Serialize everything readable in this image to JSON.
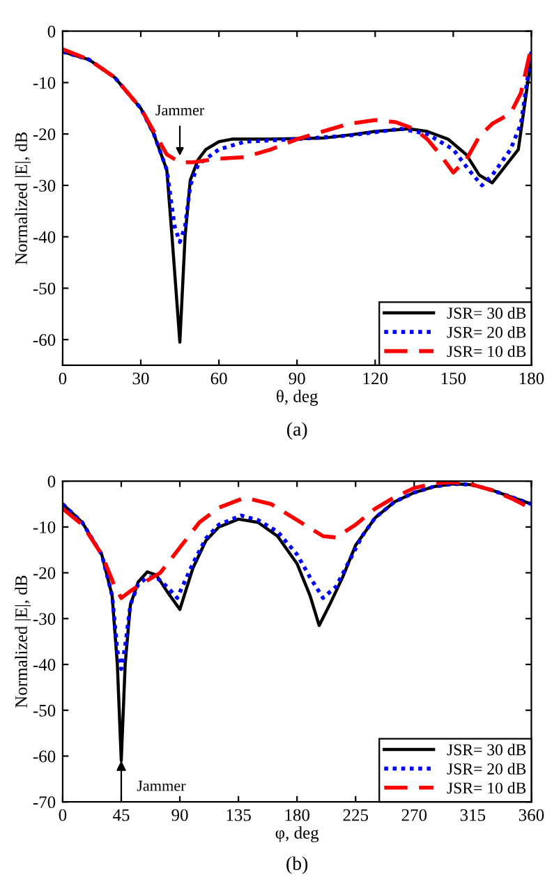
{
  "chart_data": [
    {
      "type": "line",
      "xlabel": "θ, deg",
      "ylabel": "Normalized |E|, dB",
      "xlim": [
        0,
        180
      ],
      "ylim": [
        -65,
        0
      ],
      "xticks": [
        0,
        30,
        60,
        90,
        120,
        150,
        180
      ],
      "yticks": [
        0,
        -10,
        -20,
        -30,
        -40,
        -50,
        -60
      ],
      "grid": false,
      "legend": "bottom right",
      "annotations": [
        {
          "text": "Jammer",
          "x": 45,
          "y": -25
        },
        "(a)"
      ],
      "series": [
        {
          "name": "JSR= 30 dB",
          "color": "#000000",
          "line_style": "solid",
          "x": [
            0,
            10,
            20,
            30,
            35,
            40,
            42,
            45,
            47,
            49,
            52,
            55,
            60,
            65,
            80,
            100,
            110,
            120,
            133,
            140,
            148,
            155,
            160,
            165,
            175,
            180
          ],
          "values": [
            -4,
            -5.5,
            -9,
            -15,
            -20,
            -27,
            -40,
            -60.5,
            -40,
            -29,
            -25,
            -23,
            -21.5,
            -21,
            -21,
            -20.8,
            -20.2,
            -19.5,
            -19,
            -19.5,
            -21,
            -24,
            -28,
            -29.5,
            -23,
            -5
          ]
        },
        {
          "name": "JSR= 20 dB",
          "color": "#0000ff",
          "line_style": "dotted",
          "x": [
            0,
            10,
            20,
            30,
            35,
            40,
            43,
            45,
            47,
            49,
            52,
            60,
            70,
            90,
            110,
            130,
            140,
            150,
            156,
            161,
            165,
            172,
            176,
            180
          ],
          "values": [
            -4,
            -5.5,
            -9,
            -15,
            -20,
            -27,
            -38,
            -41,
            -38,
            -30,
            -26,
            -23,
            -21.5,
            -21,
            -20.3,
            -19,
            -20,
            -23,
            -27,
            -30,
            -28,
            -23,
            -18,
            -4
          ]
        },
        {
          "name": "JSR= 10 dB",
          "color": "#ff0000",
          "line_style": "dashed",
          "x": [
            0,
            10,
            20,
            30,
            35,
            40,
            45,
            50,
            60,
            70,
            80,
            90,
            100,
            110,
            120,
            128,
            135,
            140,
            145,
            150,
            155,
            160,
            165,
            172,
            176,
            180
          ],
          "values": [
            -3.5,
            -5.5,
            -9,
            -15,
            -19.5,
            -24,
            -25.5,
            -25.5,
            -24.8,
            -24.5,
            -23,
            -21,
            -19.5,
            -18,
            -17.3,
            -17.7,
            -19,
            -21,
            -24,
            -27.5,
            -25,
            -20.5,
            -18,
            -16,
            -12,
            -3
          ]
        }
      ]
    },
    {
      "type": "line",
      "xlabel": "φ, deg",
      "ylabel": "Normalized |E|, dB",
      "xlim": [
        0,
        360
      ],
      "ylim": [
        -70,
        0
      ],
      "xticks": [
        0,
        45,
        90,
        135,
        180,
        225,
        270,
        315,
        360
      ],
      "yticks": [
        0,
        -10,
        -20,
        -30,
        -40,
        -50,
        -60,
        -70
      ],
      "grid": false,
      "legend": "bottom right",
      "annotations": [
        {
          "text": "Jammer",
          "x": 45,
          "y": -61
        },
        "(b)"
      ],
      "series": [
        {
          "name": "JSR= 30 dB",
          "color": "#000000",
          "line_style": "solid",
          "x": [
            0,
            15,
            30,
            38,
            42,
            45,
            48,
            52,
            58,
            65,
            72,
            80,
            90,
            100,
            110,
            120,
            135,
            150,
            165,
            180,
            190,
            197,
            205,
            215,
            225,
            240,
            255,
            270,
            285,
            300,
            315,
            330,
            345,
            360
          ],
          "values": [
            -5,
            -9,
            -16,
            -25,
            -40,
            -61,
            -40,
            -27,
            -22,
            -19.8,
            -20.5,
            -24,
            -28,
            -19,
            -13,
            -10,
            -8.3,
            -9,
            -12,
            -18,
            -25,
            -31.5,
            -27,
            -21,
            -14,
            -8,
            -4.5,
            -2.5,
            -1.2,
            -0.6,
            -0.8,
            -2,
            -3.5,
            -5
          ]
        },
        {
          "name": "JSR= 20 dB",
          "color": "#0000ff",
          "line_style": "dotted",
          "x": [
            0,
            15,
            30,
            38,
            42,
            45,
            48,
            52,
            58,
            65,
            72,
            80,
            88,
            100,
            110,
            120,
            137,
            150,
            165,
            180,
            190,
            200,
            210,
            220,
            230,
            240,
            255,
            270,
            285,
            300,
            315,
            330,
            345,
            360
          ],
          "values": [
            -5,
            -9,
            -16,
            -25,
            -37,
            -41,
            -36,
            -27,
            -22.5,
            -21,
            -21,
            -23,
            -25.5,
            -18,
            -12.5,
            -9.5,
            -7.5,
            -8.5,
            -11,
            -16,
            -21,
            -25.5,
            -23,
            -17.5,
            -12,
            -8,
            -4.5,
            -2.5,
            -1.2,
            -0.6,
            -0.8,
            -2,
            -3.5,
            -5
          ]
        },
        {
          "name": "JSR= 10 dB",
          "color": "#ff0000",
          "line_style": "dashed",
          "x": [
            0,
            15,
            30,
            40,
            45,
            52,
            60,
            75,
            90,
            105,
            120,
            140,
            160,
            180,
            200,
            210,
            225,
            240,
            255,
            270,
            285,
            300,
            315,
            330,
            345,
            360
          ],
          "values": [
            -6,
            -9.5,
            -16,
            -23,
            -25.5,
            -24,
            -22.5,
            -20,
            -14.5,
            -9,
            -5.8,
            -3.6,
            -5,
            -8.5,
            -12,
            -12.3,
            -9.5,
            -6,
            -3.5,
            -1.5,
            -0.5,
            -0.2,
            -0.8,
            -2,
            -3.8,
            -6
          ]
        }
      ]
    }
  ]
}
